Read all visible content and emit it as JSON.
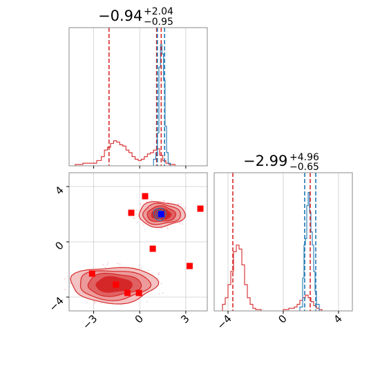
{
  "chart_data": [
    {
      "type": "histogram",
      "panel": "x1-marginal",
      "title": {
        "value": "−0.94",
        "plus": "+2.04",
        "minus": "−0.95"
      },
      "xlim": [
        -4.6,
        4.4
      ],
      "ylim": [
        0,
        1.05
      ],
      "grid": true,
      "tick_labels_shown": false,
      "series": [
        {
          "color": "#d62728",
          "x_edges": [
            -4.2,
            -3.7,
            -3.2,
            -2.8,
            -2.5,
            -2.3,
            -2.1,
            -1.9,
            -1.7,
            -1.5,
            -1.3,
            -1.1,
            -0.9,
            -0.7,
            -0.5,
            -0.3,
            -0.1,
            0.1,
            0.3,
            0.5,
            0.7,
            0.9,
            1.1,
            1.3,
            1.5,
            1.7,
            1.9,
            2.1,
            2.3,
            2.6,
            3.0,
            3.5,
            4.0
          ],
          "heights": [
            0.01,
            0.02,
            0.02,
            0.04,
            0.07,
            0.12,
            0.14,
            0.17,
            0.19,
            0.18,
            0.16,
            0.15,
            0.12,
            0.1,
            0.07,
            0.05,
            0.04,
            0.05,
            0.07,
            0.09,
            0.1,
            0.12,
            0.13,
            0.08,
            0.04,
            0.02,
            0.01,
            0.01,
            0.0,
            0.0,
            0.0,
            0.0
          ]
        },
        {
          "color": "#1f77b4",
          "x_edges": [
            0.7,
            0.9,
            1.05,
            1.15,
            1.25,
            1.35,
            1.45,
            1.55,
            1.65,
            1.75,
            1.85,
            2.0,
            2.2
          ],
          "heights": [
            0.0,
            0.05,
            0.1,
            0.25,
            0.75,
            0.92,
            0.85,
            0.65,
            0.3,
            0.1,
            0.02,
            0.0
          ]
        }
      ],
      "vlines": [
        {
          "x": -2.0,
          "color": "#d62728"
        },
        {
          "x": 1.1,
          "color": "#d62728"
        },
        {
          "x": 1.4,
          "color": "#d62728"
        },
        {
          "x": 1.15,
          "color": "#1f77b4"
        },
        {
          "x": 1.62,
          "color": "#1f77b4"
        }
      ]
    },
    {
      "type": "contour",
      "panel": "x1-vs-x2",
      "xlim": [
        -4.6,
        4.4
      ],
      "ylim": [
        -5.0,
        5.0
      ],
      "xticks": [
        -3,
        0,
        3
      ],
      "xtick_labels": [
        "−3",
        "0",
        "3"
      ],
      "yticks": [
        -4,
        0,
        4
      ],
      "ytick_labels": [
        "−4",
        "0",
        "4"
      ],
      "grid": true,
      "red_regions": [
        {
          "center": [
            -1.7,
            -3.1
          ],
          "size": [
            2.8,
            1.3
          ]
        },
        {
          "center": [
            1.4,
            2.0
          ],
          "size": [
            1.5,
            0.9
          ]
        }
      ],
      "blue_region": {
        "center": [
          1.3,
          2.0
        ],
        "size": [
          0.4,
          0.45
        ]
      },
      "markers": [
        {
          "x": 0.35,
          "y": 3.3,
          "color": "#ff0000"
        },
        {
          "x": -0.55,
          "y": 2.1,
          "color": "#ff0000"
        },
        {
          "x": 3.95,
          "y": 2.4,
          "color": "#ff0000"
        },
        {
          "x": 0.85,
          "y": -0.5,
          "color": "#ff0000"
        },
        {
          "x": 3.25,
          "y": -1.75,
          "color": "#ff0000"
        },
        {
          "x": -3.1,
          "y": -2.3,
          "color": "#ff0000"
        },
        {
          "x": -1.55,
          "y": -3.1,
          "color": "#ff0000"
        },
        {
          "x": -0.8,
          "y": -3.7,
          "color": "#ff0000"
        },
        {
          "x": -0.05,
          "y": -3.7,
          "color": "#ff0000"
        },
        {
          "x": 1.4,
          "y": 2.0,
          "color": "#0000ff"
        }
      ]
    },
    {
      "type": "histogram",
      "panel": "x2-marginal",
      "title": {
        "value": "−2.99",
        "plus": "+4.96",
        "minus": "−0.65"
      },
      "xlim": [
        -5.0,
        5.0
      ],
      "ylim": [
        0,
        1.05
      ],
      "xticks": [
        -4,
        0,
        4
      ],
      "xtick_labels": [
        "−4",
        "0",
        "4"
      ],
      "grid": true,
      "series": [
        {
          "color": "#d62728",
          "x_edges": [
            -4.4,
            -4.2,
            -4.0,
            -3.8,
            -3.6,
            -3.4,
            -3.2,
            -3.0,
            -2.8,
            -2.6,
            -2.4,
            -2.2,
            -2.0,
            -1.6,
            -1.0,
            -0.5,
            0.0,
            0.4,
            0.8,
            1.0,
            1.2,
            1.4,
            1.6,
            1.8,
            2.0,
            2.2,
            2.4,
            2.6,
            2.8,
            3.0,
            3.4
          ],
          "heights": [
            0.05,
            0.1,
            0.2,
            0.3,
            0.45,
            0.5,
            0.47,
            0.35,
            0.2,
            0.1,
            0.05,
            0.02,
            0.01,
            0.0,
            0.0,
            0.0,
            0.01,
            0.02,
            0.03,
            0.05,
            0.08,
            0.1,
            0.12,
            0.1,
            0.07,
            0.04,
            0.02,
            0.01,
            0.0,
            0.0
          ]
        },
        {
          "color": "#1f77b4",
          "x_edges": [
            1.2,
            1.4,
            1.5,
            1.6,
            1.7,
            1.8,
            1.9,
            2.0,
            2.1,
            2.2,
            2.3,
            2.4,
            2.6,
            2.8
          ],
          "heights": [
            0.03,
            0.25,
            0.5,
            0.55,
            0.8,
            0.9,
            0.75,
            0.6,
            0.5,
            0.3,
            0.15,
            0.05,
            0.0
          ]
        }
      ],
      "vlines": [
        {
          "x": -3.65,
          "color": "#d62728"
        },
        {
          "x": 1.95,
          "color": "#d62728"
        },
        {
          "x": 1.55,
          "color": "#1f77b4"
        },
        {
          "x": 2.35,
          "color": "#1f77b4"
        }
      ]
    }
  ]
}
